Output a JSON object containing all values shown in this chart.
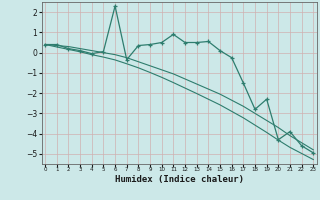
{
  "xlabel": "Humidex (Indice chaleur)",
  "x_values": [
    0,
    1,
    2,
    3,
    4,
    5,
    6,
    7,
    8,
    9,
    10,
    11,
    12,
    13,
    14,
    15,
    16,
    17,
    18,
    19,
    20,
    21,
    22,
    23
  ],
  "y_main": [
    0.4,
    0.4,
    0.2,
    0.1,
    -0.05,
    0.05,
    2.3,
    -0.35,
    0.35,
    0.4,
    0.5,
    0.9,
    0.5,
    0.5,
    0.55,
    0.1,
    -0.25,
    -1.5,
    -2.8,
    -2.3,
    -4.3,
    -3.9,
    -4.6,
    -4.95
  ],
  "y_line1": [
    0.4,
    0.35,
    0.3,
    0.2,
    0.1,
    0.0,
    -0.1,
    -0.25,
    -0.45,
    -0.65,
    -0.85,
    -1.05,
    -1.3,
    -1.55,
    -1.8,
    -2.05,
    -2.35,
    -2.65,
    -3.0,
    -3.35,
    -3.7,
    -4.1,
    -4.45,
    -4.8
  ],
  "y_line2": [
    0.4,
    0.28,
    0.16,
    0.04,
    -0.1,
    -0.22,
    -0.36,
    -0.55,
    -0.75,
    -0.98,
    -1.22,
    -1.48,
    -1.75,
    -2.02,
    -2.3,
    -2.58,
    -2.9,
    -3.22,
    -3.58,
    -3.94,
    -4.32,
    -4.68,
    -4.98,
    -5.28
  ],
  "line_color": "#2e7d6e",
  "bg_color": "#cce8e8",
  "grid_color": "#aed0d0",
  "ylim": [
    -5.5,
    2.5
  ],
  "yticks": [
    -5,
    -4,
    -3,
    -2,
    -1,
    0,
    1,
    2
  ],
  "xticks": [
    0,
    1,
    2,
    3,
    4,
    5,
    6,
    7,
    8,
    9,
    10,
    11,
    12,
    13,
    14,
    15,
    16,
    17,
    18,
    19,
    20,
    21,
    22,
    23
  ]
}
